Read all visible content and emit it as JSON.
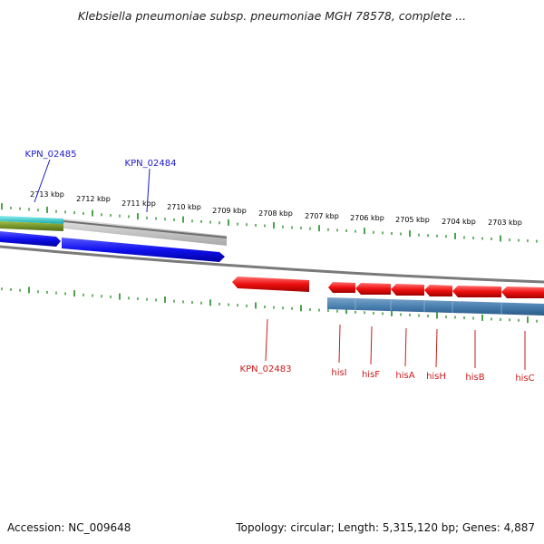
{
  "title": "Klebsiella pneumoniae subsp. pneumoniae MGH 78578, complete ...",
  "footer": {
    "accession": "Accession: NC_009648",
    "summary": "Topology: circular; Length: 5,315,120 bp; Genes: 4,887"
  },
  "colors": {
    "tick": "#1e8a1e",
    "forward_gene": "#1a1aff",
    "reverse_gene": "#ff1a1a",
    "cds_track": "#4a80b0",
    "cyan_feature": "#1ec8c8",
    "olive_feature": "#6f8a23",
    "gray_feature": "#c8c8c8",
    "backbone": "#7a7a7a",
    "label_forward": "#1a1acc",
    "label_reverse": "#cc1a1a"
  },
  "ruler": {
    "major_labels": [
      "2713 kbp",
      "2712 kbp",
      "2711 kbp",
      "2710 kbp",
      "2709 kbp",
      "2708 kbp",
      "2707 kbp",
      "2706 kbp",
      "2705 kbp",
      "2704 kbp",
      "2703 kbp"
    ]
  },
  "genes": [
    {
      "label": "KPN_02485",
      "strand": "forward"
    },
    {
      "label": "KPN_02484",
      "strand": "forward"
    },
    {
      "label": "KPN_02483",
      "strand": "reverse"
    },
    {
      "label": "hisI",
      "strand": "reverse"
    },
    {
      "label": "hisF",
      "strand": "reverse"
    },
    {
      "label": "hisA",
      "strand": "reverse"
    },
    {
      "label": "hisH",
      "strand": "reverse"
    },
    {
      "label": "hisB",
      "strand": "reverse"
    },
    {
      "label": "hisC",
      "strand": "reverse"
    }
  ]
}
